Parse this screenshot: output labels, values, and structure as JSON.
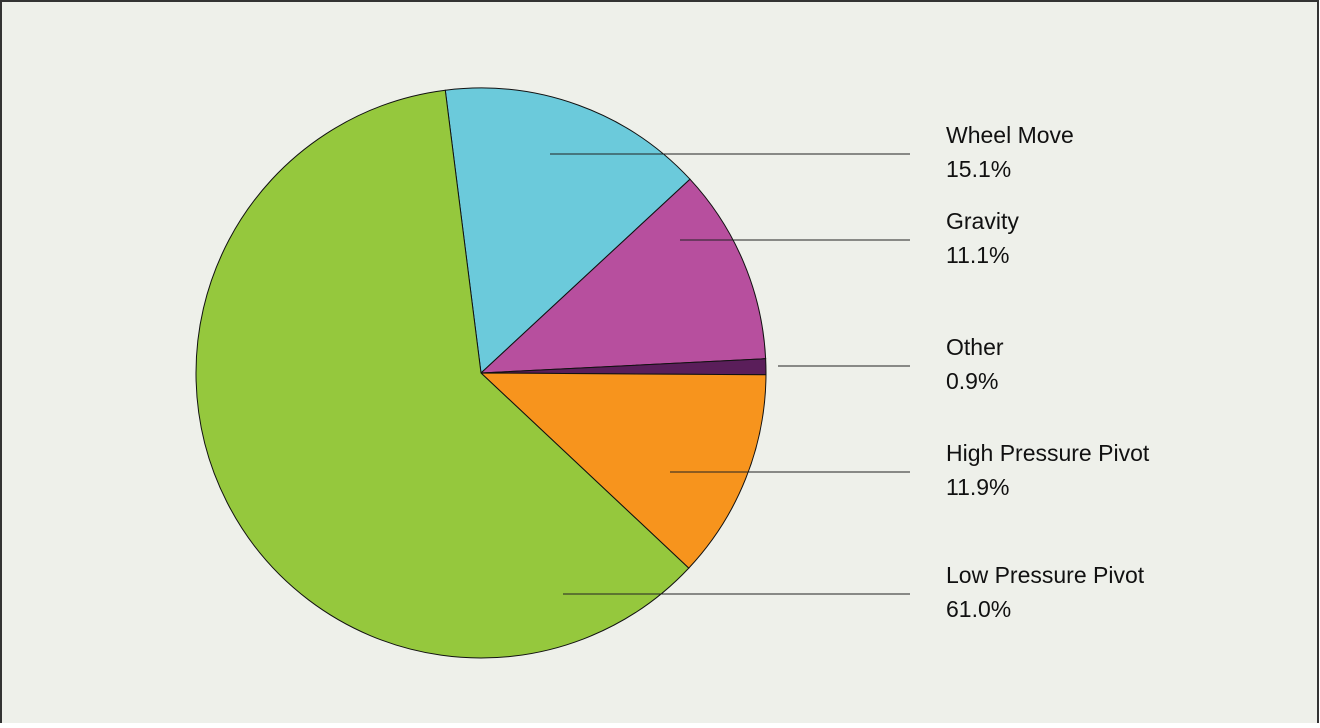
{
  "chart_data": {
    "type": "pie",
    "categories": [
      "Wheel Move",
      "Gravity",
      "Other",
      "High Pressure Pivot",
      "Low Pressure Pivot"
    ],
    "values": [
      15.1,
      11.1,
      0.9,
      11.9,
      61.0
    ],
    "value_labels": [
      "15.1%",
      "11.1%",
      "0.9%",
      "11.9%",
      "61.0%"
    ],
    "colors": [
      "#6bcadb",
      "#b74f9e",
      "#5a1e5a",
      "#f7941d",
      "#95c83d"
    ]
  }
}
